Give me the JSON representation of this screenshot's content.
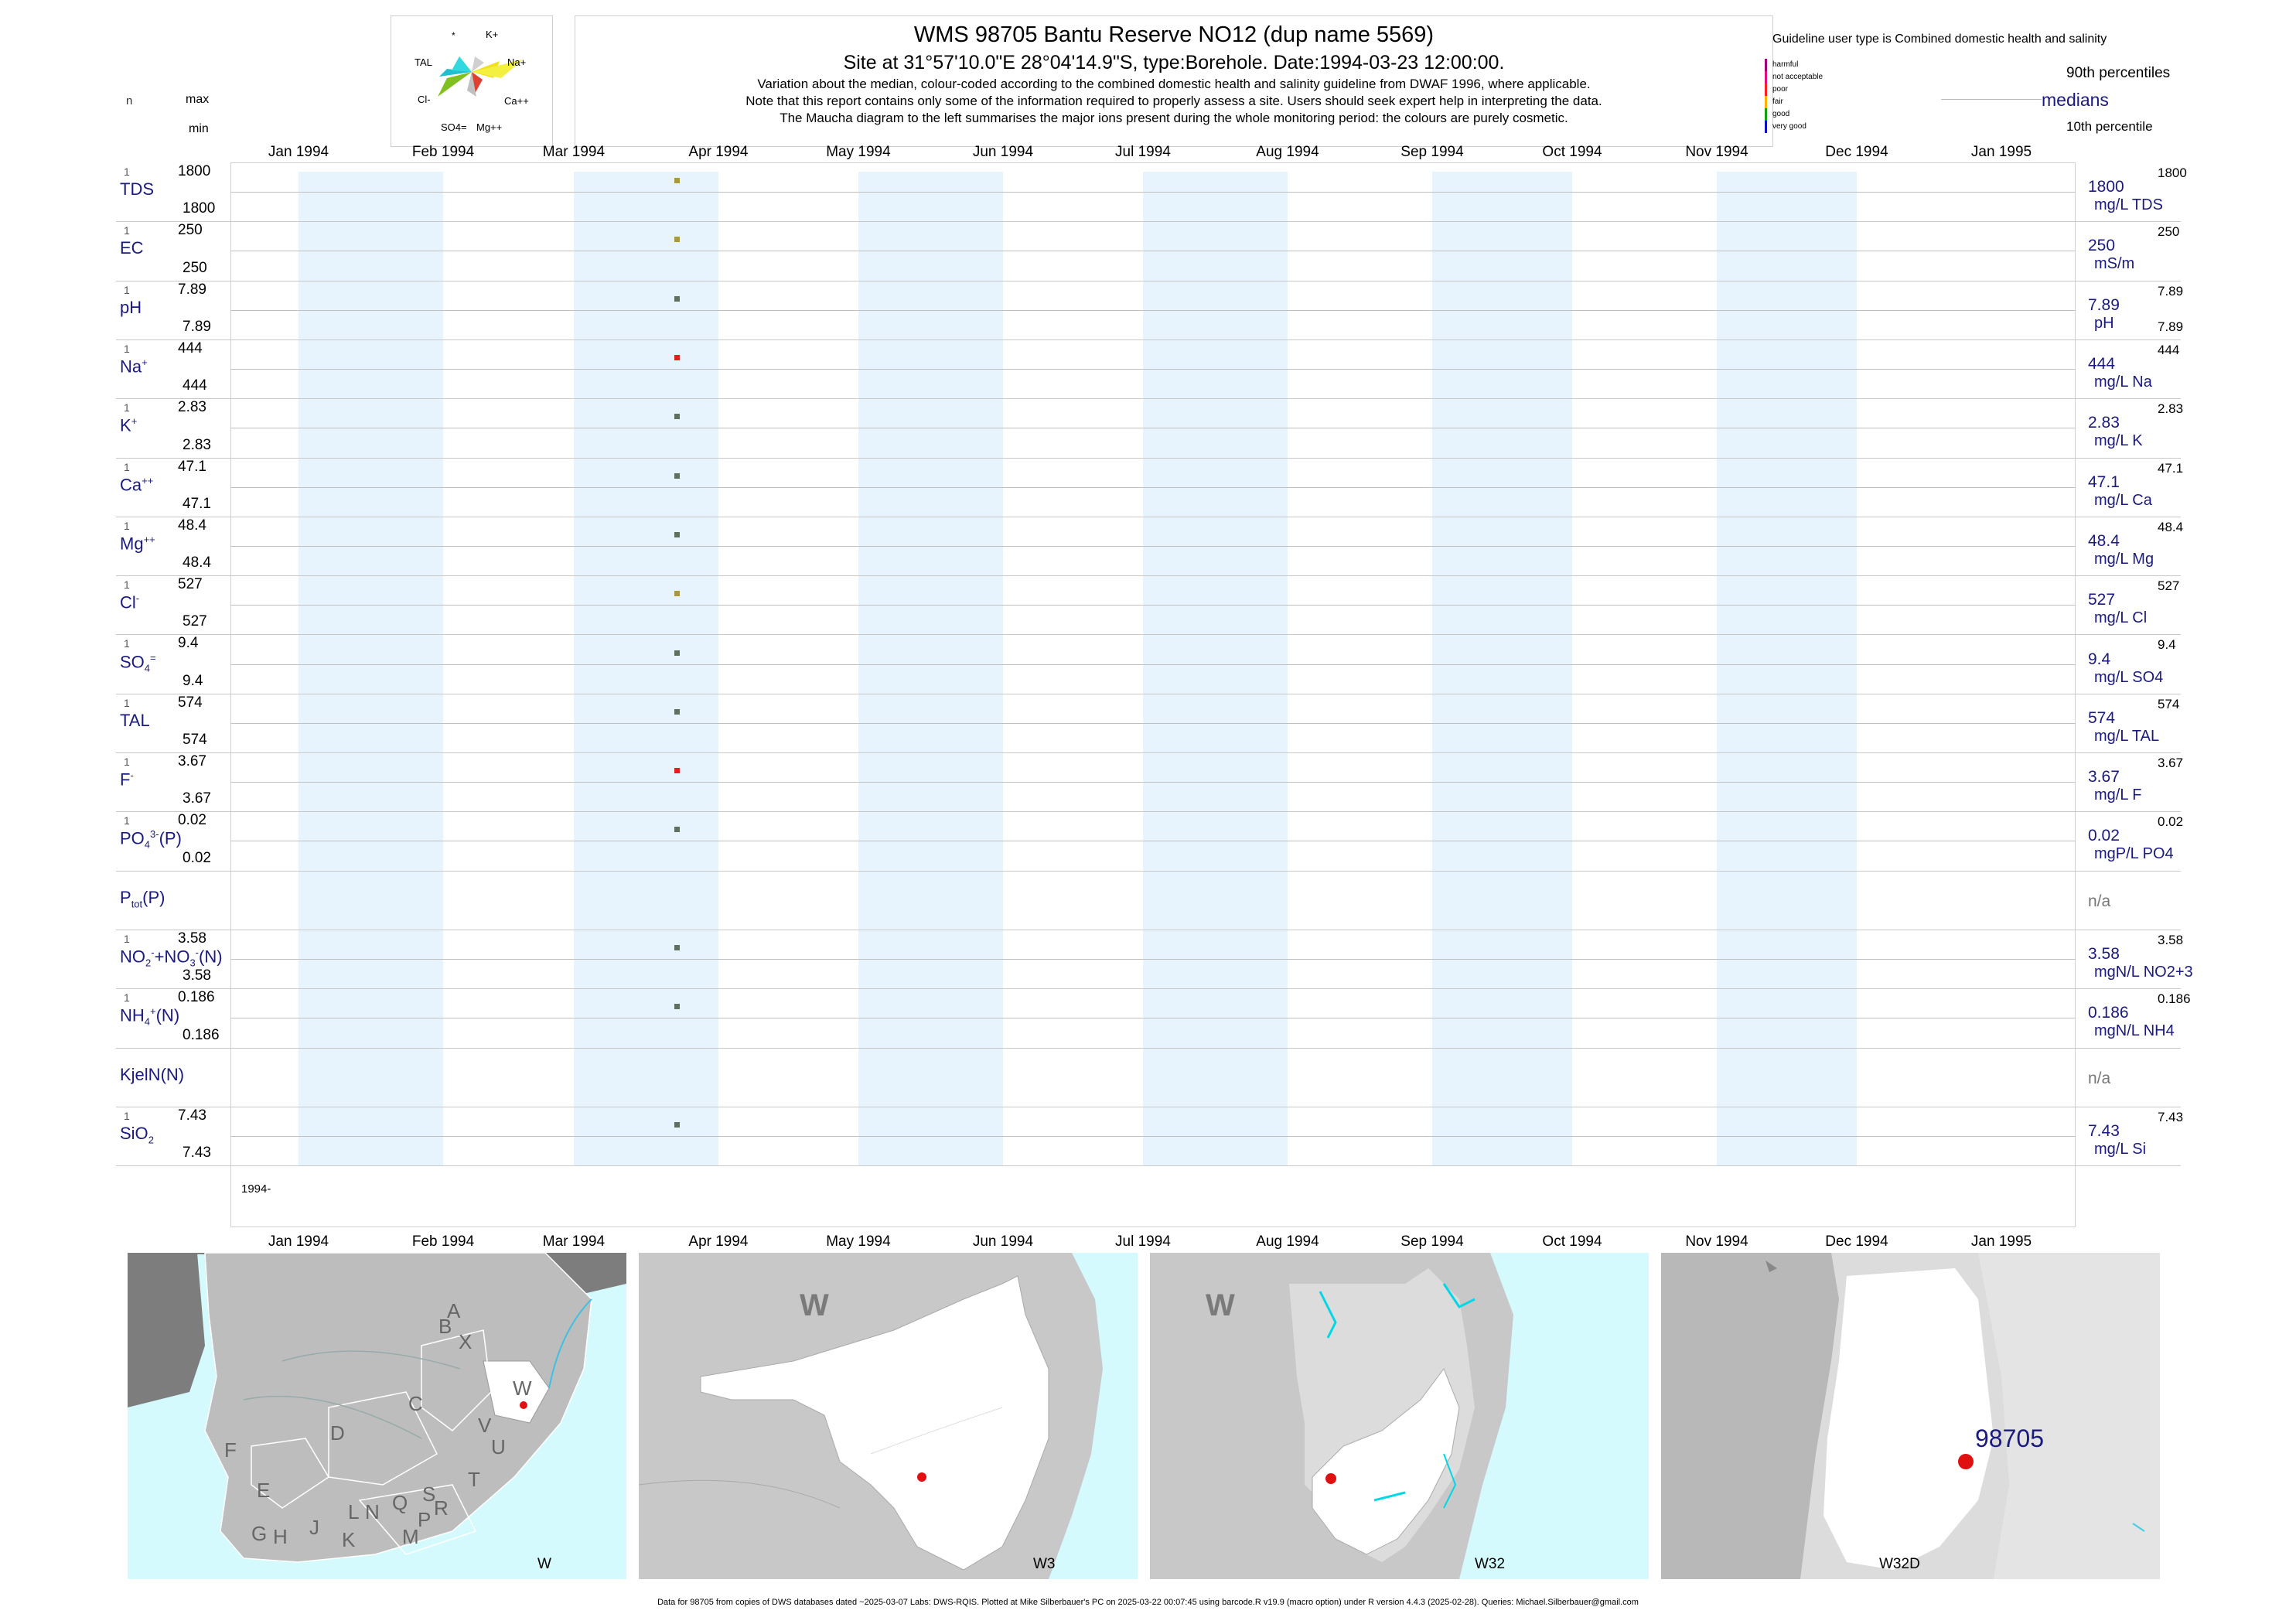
{
  "header": {
    "title": "WMS 98705  Bantu Reserve NO12 (dup name 5569)",
    "subtitle": "Site at 31°57'10.0\"E 28°04'14.9\"S, type:Borehole. Date:1994-03-23 12:00:00.",
    "note1": "Variation about the median,  colour-coded according to the combined domestic health and salinity guideline from DWAF 1996, where applicable.",
    "note2": "Note that this report contains only some of the information required to properly assess a site. Users should seek expert help in interpreting the data.",
    "note3": "The Maucha diagram to the left summarises the major ions present during the whole monitoring period: the colours are purely cosmetic."
  },
  "maucha": {
    "labels": [
      "*",
      "K+",
      "TAL",
      "Na+",
      "Cl-",
      "Ca++",
      "SO4=",
      "Mg++"
    ]
  },
  "left_header": {
    "n": "n",
    "max": "max",
    "min": "min"
  },
  "legend": {
    "guideline_title": "Guideline user type is Combined domestic health and salinity",
    "classes": [
      {
        "label": "harmful",
        "color": "#a0007a"
      },
      {
        "label": "not acceptable",
        "color": "#e0107a"
      },
      {
        "label": "poor",
        "color": "#ff2020"
      },
      {
        "label": "fair",
        "color": "#ffb000"
      },
      {
        "label": "good",
        "color": "#10a010"
      },
      {
        "label": "very good",
        "color": "#1010c0"
      }
    ],
    "p90": "90th percentiles",
    "medians": "medians",
    "p10": "10th percentile"
  },
  "chart_data": {
    "type": "scatter",
    "x_axis": {
      "range": [
        "1994-01-01",
        "1995-01-01"
      ],
      "ticks": [
        "Jan 1994",
        "Feb 1994",
        "Mar 1994",
        "Apr 1994",
        "May 1994",
        "Jun 1994",
        "Jul 1994",
        "Aug 1994",
        "Sep 1994",
        "Oct 1994",
        "Nov 1994",
        "Dec 1994",
        "Jan 1995"
      ],
      "year_label": "1994-"
    },
    "sample_date": "1994-03-23",
    "series": [
      {
        "name": "TDS",
        "n": "1",
        "max": "1800",
        "min": "1800",
        "median": "1800",
        "unit": "mg/L TDS",
        "p90": "1800",
        "p10": "",
        "value": 1800,
        "color": "#a89a3a"
      },
      {
        "name": "EC",
        "n": "1",
        "max": "250",
        "min": "250",
        "median": "250",
        "unit": "mS/m",
        "p90": "250",
        "p10": "",
        "value": 250,
        "color": "#a89a3a"
      },
      {
        "name": "pH",
        "n": "1",
        "max": "7.89",
        "min": "7.89",
        "median": "7.89",
        "unit": "pH",
        "p90": "7.89",
        "p10": "7.89",
        "value": 7.89,
        "color": "#607060"
      },
      {
        "name": "Na+",
        "n": "1",
        "max": "444",
        "min": "444",
        "median": "444",
        "unit": "mg/L Na",
        "p90": "444",
        "p10": "",
        "value": 444,
        "color": "#e02020"
      },
      {
        "name": "K+",
        "n": "1",
        "max": "2.83",
        "min": "2.83",
        "median": "2.83",
        "unit": "mg/L K",
        "p90": "2.83",
        "p10": "",
        "value": 2.83,
        "color": "#607060"
      },
      {
        "name": "Ca++",
        "n": "1",
        "max": "47.1",
        "min": "47.1",
        "median": "47.1",
        "unit": "mg/L Ca",
        "p90": "47.1",
        "p10": "",
        "value": 47.1,
        "color": "#607060"
      },
      {
        "name": "Mg++",
        "n": "1",
        "max": "48.4",
        "min": "48.4",
        "median": "48.4",
        "unit": "mg/L Mg",
        "p90": "48.4",
        "p10": "",
        "value": 48.4,
        "color": "#607060"
      },
      {
        "name": "Cl-",
        "n": "1",
        "max": "527",
        "min": "527",
        "median": "527",
        "unit": "mg/L Cl",
        "p90": "527",
        "p10": "",
        "value": 527,
        "color": "#a89a3a"
      },
      {
        "name": "SO4=",
        "n": "1",
        "max": "9.4",
        "min": "9.4",
        "median": "9.4",
        "unit": "mg/L SO4",
        "p90": "9.4",
        "p10": "",
        "value": 9.4,
        "color": "#607060"
      },
      {
        "name": "TAL",
        "n": "1",
        "max": "574",
        "min": "574",
        "median": "574",
        "unit": "mg/L TAL",
        "p90": "574",
        "p10": "",
        "value": 574,
        "color": "#607060"
      },
      {
        "name": "F-",
        "n": "1",
        "max": "3.67",
        "min": "3.67",
        "median": "3.67",
        "unit": "mg/L F",
        "p90": "3.67",
        "p10": "",
        "value": 3.67,
        "color": "#e02020"
      },
      {
        "name": "PO4(P)",
        "n": "1",
        "max": "0.02",
        "min": "0.02",
        "median": "0.02",
        "unit": "mgP/L PO4",
        "p90": "0.02",
        "p10": "",
        "value": 0.02,
        "color": "#607060"
      },
      {
        "name": "Ptot(P)",
        "n": "",
        "max": "",
        "min": "",
        "median": "n/a",
        "unit": "",
        "p90": "",
        "p10": "",
        "value": null,
        "color": ""
      },
      {
        "name": "NO2+NO3(N)",
        "n": "1",
        "max": "3.58",
        "min": "3.58",
        "median": "3.58",
        "unit": "mgN/L NO2+3",
        "p90": "3.58",
        "p10": "",
        "value": 3.58,
        "color": "#607060"
      },
      {
        "name": "NH4+(N)",
        "n": "1",
        "max": "0.186",
        "min": "0.186",
        "median": "0.186",
        "unit": "mgN/L NH4",
        "p90": "0.186",
        "p10": "",
        "value": 0.186,
        "color": "#607060"
      },
      {
        "name": "KjelN(N)",
        "n": "",
        "max": "",
        "min": "",
        "median": "n/a",
        "unit": "",
        "p90": "",
        "p10": "",
        "value": null,
        "color": ""
      },
      {
        "name": "SiO2",
        "n": "1",
        "max": "7.43",
        "min": "7.43",
        "median": "7.43",
        "unit": "mg/L Si",
        "p90": "7.43",
        "p10": "",
        "value": 7.43,
        "color": "#607060"
      }
    ]
  },
  "maps": [
    {
      "caption": "W",
      "letters": [
        "A",
        "B",
        "X",
        "C",
        "W",
        "D",
        "V",
        "U",
        "F",
        "T",
        "E",
        "S",
        "Q",
        "R",
        "N",
        "L",
        "P",
        "J",
        "M",
        "G",
        "H",
        "K"
      ]
    },
    {
      "caption": "W3",
      "letters": [
        "W"
      ]
    },
    {
      "caption": "W32",
      "letters": [
        "W"
      ]
    },
    {
      "caption": "W32D",
      "site": "98705"
    }
  ],
  "footer": "Data for 98705 from copies of DWS databases dated ~2025-03-07 Labs: DWS-RQIS. Plotted at Mike Silberbauer's PC on 2025-03-22 00:07:45 using barcode.R v19.9 (macro option) under R version 4.4.3 (2025-02-28). Queries: Michael.Silberbauer@gmail.com"
}
